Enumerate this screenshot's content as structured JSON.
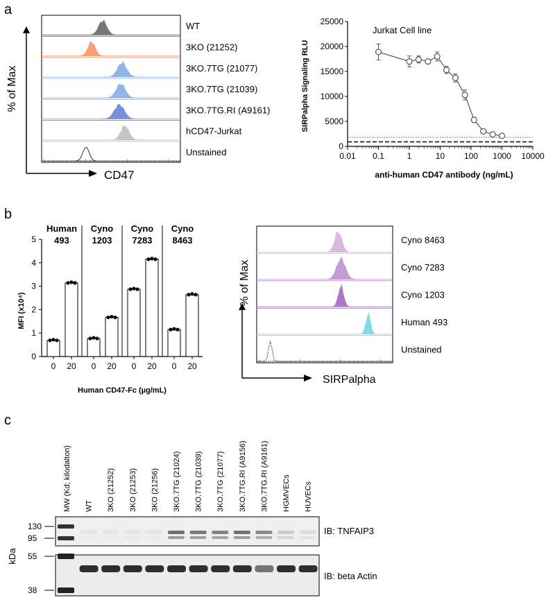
{
  "panels": {
    "a": "a",
    "b": "b",
    "c": "c"
  },
  "flow_a": {
    "y_label": "% of Max",
    "x_label": "CD47",
    "rows": [
      {
        "label": "WT",
        "color": "#777777",
        "peak": 0.44,
        "width": 0.09
      },
      {
        "label": "3KO (21252)",
        "color": "#F4A07A",
        "peak": 0.36,
        "width": 0.08
      },
      {
        "label": "3KO.7TG (21077)",
        "color": "#93B4E6",
        "peak": 0.58,
        "width": 0.1
      },
      {
        "label": "3KO.7TG (21039)",
        "color": "#93B4E6",
        "peak": 0.57,
        "width": 0.1
      },
      {
        "label": "3KO.7TG.RI (A9161)",
        "color": "#7A8FD9",
        "peak": 0.56,
        "width": 0.11
      },
      {
        "label": "hCD47-Jurkat",
        "color": "#C4C4C4",
        "peak": 0.6,
        "width": 0.09
      },
      {
        "label": "Unstained",
        "color": "none",
        "peak": 0.32,
        "width": 0.07
      }
    ]
  },
  "chart_data": [
    {
      "type": "line",
      "title": "Jurkat Cell line",
      "xlabel": "anti-human CD47 antibody (ng/mL)",
      "ylabel": "SIRPalpha Signaling RLU",
      "xscale": "log",
      "xlim": [
        0.01,
        10000
      ],
      "ylim": [
        0,
        25000
      ],
      "xticks": [
        "0.01",
        "0.1",
        "1",
        "10",
        "100",
        "1000",
        "10000"
      ],
      "xtick_values": [
        0.01,
        0.1,
        1,
        10,
        100,
        1000,
        10000
      ],
      "yticks": [
        0,
        5000,
        10000,
        15000,
        20000,
        25000
      ],
      "x": [
        0.1,
        1,
        2,
        4,
        8,
        16,
        31,
        63,
        125,
        250,
        500,
        1000
      ],
      "y": [
        18900,
        17000,
        17400,
        17000,
        18000,
        15300,
        13700,
        10300,
        5300,
        3000,
        2400,
        2100
      ],
      "err": [
        1600,
        1100,
        700,
        400,
        900,
        700,
        800,
        1000,
        500,
        200,
        200,
        150
      ],
      "ref_dotted": 1800,
      "ref_dashed": 900
    },
    {
      "type": "bar",
      "ylabel": "MFI (x10⁴)",
      "xlabel": "Human CD47-Fc (µg/mL)",
      "ylim": [
        0,
        5
      ],
      "yticks": [
        0,
        1,
        2,
        3,
        4,
        5
      ],
      "groups": [
        {
          "name": "Human",
          "sub": "493",
          "categories": [
            "0",
            "20"
          ],
          "values": [
            0.69,
            3.14
          ]
        },
        {
          "name": "Cyno",
          "sub": "1203",
          "categories": [
            "0",
            "20"
          ],
          "values": [
            0.77,
            1.67
          ]
        },
        {
          "name": "Cyno",
          "sub": "7283",
          "categories": [
            "0",
            "20"
          ],
          "values": [
            2.87,
            4.15
          ]
        },
        {
          "name": "Cyno",
          "sub": "8463",
          "categories": [
            "0",
            "20"
          ],
          "values": [
            1.15,
            2.64
          ]
        }
      ]
    }
  ],
  "flow_b": {
    "y_label": "% of Max",
    "x_label": "SIRPalpha",
    "rows": [
      {
        "label": "Cyno 8463",
        "color": "#D9B9DD",
        "peak": 0.6,
        "width": 0.08
      },
      {
        "label": "Cyno 7283",
        "color": "#C49BD2",
        "peak": 0.62,
        "width": 0.1
      },
      {
        "label": "Cyno 1203",
        "color": "#A87BC4",
        "peak": 0.62,
        "width": 0.06
      },
      {
        "label": "Human 493",
        "color": "#7ED9EC",
        "peak": 0.82,
        "width": 0.05
      },
      {
        "label": "Unstained",
        "color": "none",
        "peak": 0.1,
        "width": 0.04
      }
    ]
  },
  "blot": {
    "lanes": [
      "MW (Kd; kilodalton)",
      "WT",
      "3KO (21252)",
      "3KO (21253)",
      "3KO (21256)",
      "3KO.7TG (21024)",
      "3KO.7TG (21039)",
      "3KO.7TG (21077)",
      "3KO.7TG.RI (A9156)",
      "3KO.7TG.RI (A9161)",
      "HGMVECs",
      "HUVECs"
    ],
    "top_markers": [
      "130",
      "95"
    ],
    "bottom_markers": [
      "55",
      "38"
    ],
    "y_label": "kDa",
    "top_ib": "IB: TNFAIP3",
    "bottom_ib": "IB: beta Actin",
    "tnf_intensity": [
      0,
      0.05,
      0.05,
      0.05,
      0.05,
      0.7,
      0.65,
      0.6,
      0.7,
      0.55,
      0.2,
      0.1
    ],
    "actin_intensity": [
      0,
      0.95,
      0.95,
      0.95,
      0.95,
      0.95,
      0.95,
      0.95,
      0.95,
      0.6,
      0.95,
      0.95
    ]
  }
}
